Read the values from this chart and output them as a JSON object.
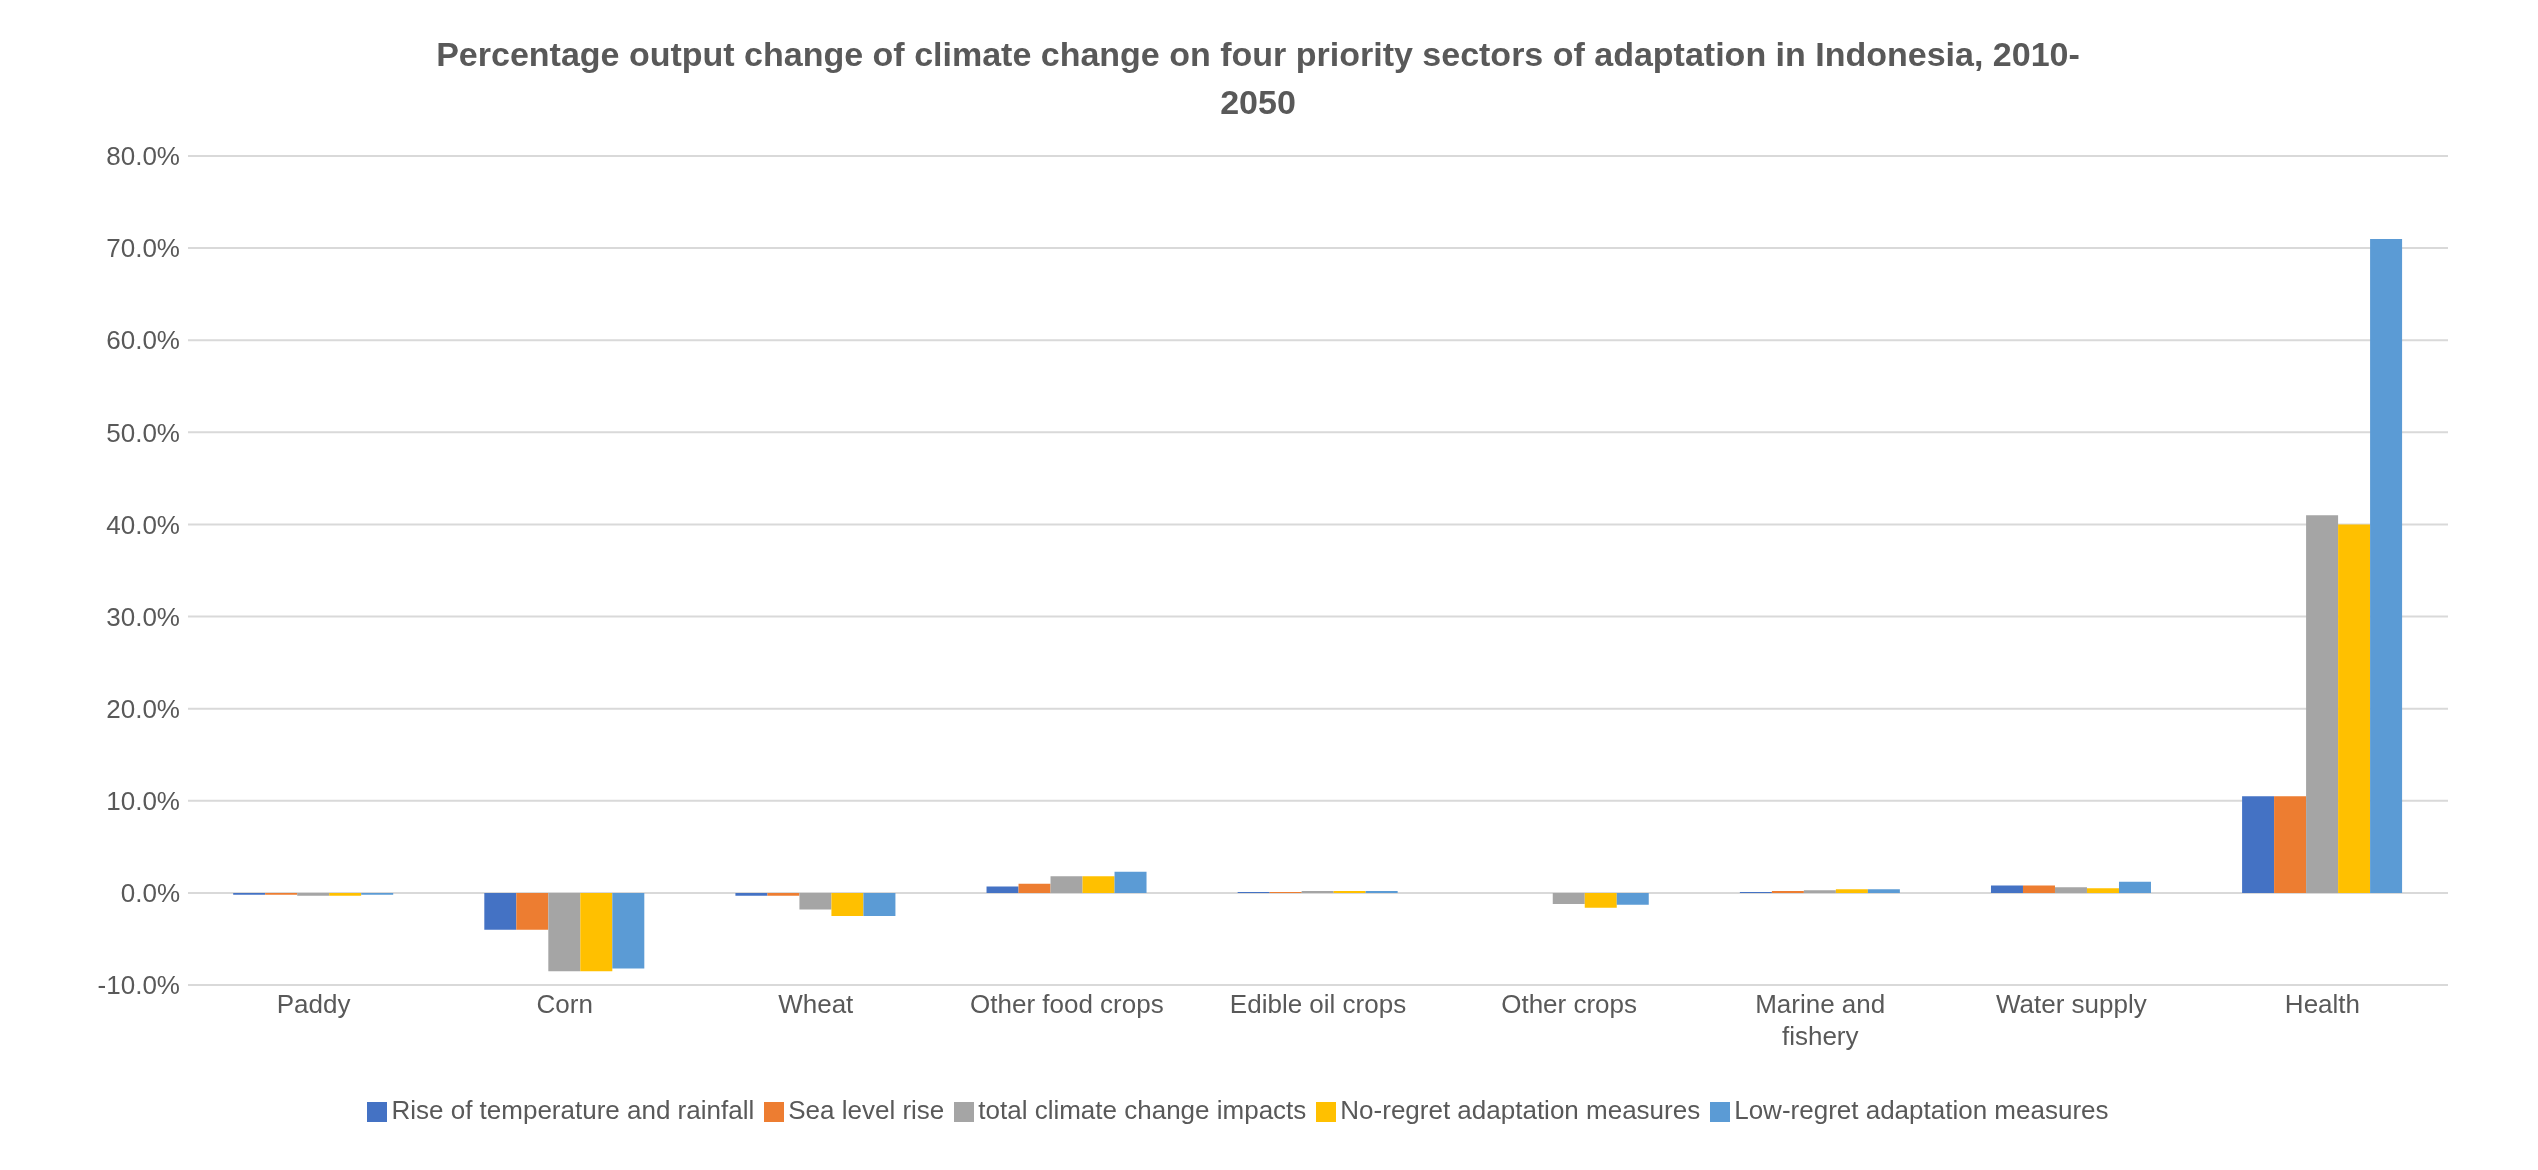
{
  "chart_data": {
    "type": "bar",
    "title": "Percentage output change of climate change on four priority sectors of adaptation in Indonesia, 2010-2050",
    "categories": [
      "Paddy",
      "Corn",
      "Wheat",
      "Other food crops",
      "Edible oil crops",
      "Other crops",
      "Marine and fishery",
      "Water supply",
      "Health"
    ],
    "series": [
      {
        "name": "Rise of temperature and rainfall",
        "color": "#4472c4",
        "values": [
          -0.2,
          -4,
          -0.3,
          0.7,
          0.1,
          0,
          0.1,
          0.8,
          10.5
        ]
      },
      {
        "name": "Sea level rise",
        "color": "#ed7d31",
        "values": [
          -0.2,
          -4,
          -0.3,
          1,
          0.1,
          0,
          0.2,
          0.8,
          10.5
        ]
      },
      {
        "name": "total climate change impacts",
        "color": "#a5a5a5",
        "values": [
          -0.3,
          -8.5,
          -1.8,
          1.8,
          0.2,
          -1.2,
          0.3,
          0.6,
          41
        ]
      },
      {
        "name": "No-regret adaptation measures",
        "color": "#ffc000",
        "values": [
          -0.3,
          -8.5,
          -2.5,
          1.8,
          0.2,
          -1.6,
          0.4,
          0.5,
          40
        ]
      },
      {
        "name": "Low-regret adaptation measures",
        "color": "#5b9bd5",
        "values": [
          -0.2,
          -8.2,
          -2.5,
          2.3,
          0.2,
          -1.3,
          0.4,
          1.2,
          71
        ]
      }
    ],
    "ylim": [
      -10,
      80
    ],
    "yticks": [
      {
        "value": -10,
        "label": "-10.0%"
      },
      {
        "value": 0,
        "label": "0.0%"
      },
      {
        "value": 10,
        "label": "10.0%"
      },
      {
        "value": 20,
        "label": "20.0%"
      },
      {
        "value": 30,
        "label": "30.0%"
      },
      {
        "value": 40,
        "label": "40.0%"
      },
      {
        "value": 50,
        "label": "50.0%"
      },
      {
        "value": 60,
        "label": "60.0%"
      },
      {
        "value": 70,
        "label": "70.0%"
      },
      {
        "value": 80,
        "label": "80.0%"
      }
    ],
    "grid": "y",
    "legend": "bottom"
  }
}
